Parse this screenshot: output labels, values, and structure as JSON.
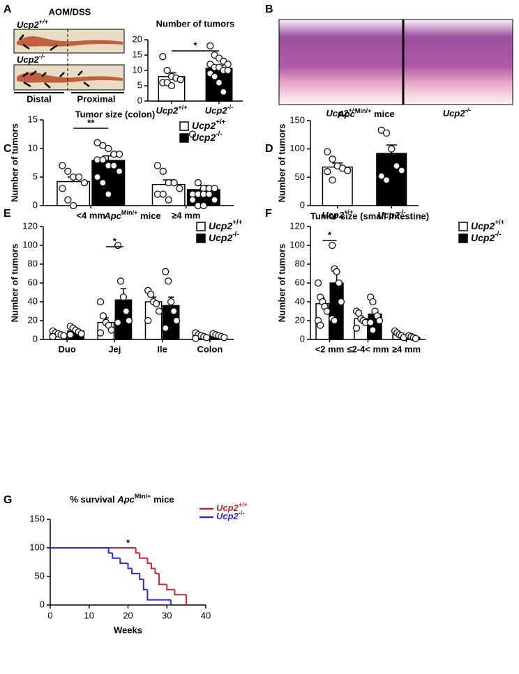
{
  "panel_labels": [
    "A",
    "B",
    "C",
    "D",
    "E",
    "F",
    "G"
  ],
  "figure_a": {
    "title": "AOM/DSS",
    "genotypes": [
      "Ucp2+/+",
      "Ucp2-/-"
    ],
    "regions": [
      "Distal",
      "Proximal"
    ]
  },
  "figure_b": {
    "captions": [
      "Ucp2+/+",
      "Ucp2-/-"
    ]
  },
  "chart_data": [
    {
      "type": "bar",
      "title": "Number of tumors",
      "categories": [
        "Ucp2+/+",
        "Ucp2-/-"
      ],
      "values": [
        8,
        10.7
      ],
      "errors": [
        1.2,
        0.9
      ],
      "colors": [
        "#ffffff",
        "#000000"
      ],
      "points": [
        [
          14.5,
          10,
          8,
          7.5,
          7,
          6,
          6,
          5
        ],
        [
          18,
          15,
          14,
          13,
          12,
          12,
          11,
          11,
          10,
          10,
          9,
          8,
          6,
          3
        ]
      ],
      "ylim": [
        0,
        20
      ],
      "yticks": [
        0,
        5,
        10,
        15,
        20
      ],
      "annotation": "*"
    },
    {
      "type": "bar",
      "title": "Tumor size (colon)",
      "ylabel": "Number of tumors",
      "categories": [
        "<4 mm",
        "≥4 mm"
      ],
      "series": [
        {
          "name": "Ucp2+/+",
          "color": "#ffffff",
          "values": [
            4.2,
            3.7
          ],
          "errors": [
            0.8,
            0.8
          ],
          "points": [
            [
              7,
              6,
              5,
              5,
              4,
              3,
              1,
              0
            ],
            [
              7,
              6,
              4,
              4,
              3,
              2,
              2,
              1
            ]
          ]
        },
        {
          "name": "Ucp2-/-",
          "color": "#000000",
          "values": [
            7.9,
            2.8
          ],
          "errors": [
            0.8,
            0.7
          ],
          "points": [
            [
              11,
              10.5,
              10,
              9,
              9,
              8,
              8,
              7,
              7,
              6,
              5,
              4,
              2
            ],
            [
              12.5,
              4,
              3,
              3,
              3,
              2,
              2,
              2,
              2,
              1,
              1,
              0,
              0
            ]
          ]
        }
      ],
      "ylim": [
        0,
        15
      ],
      "yticks": [
        0,
        5,
        10,
        15
      ],
      "annotation": "**"
    },
    {
      "type": "bar",
      "title": "ApcMin/+ mice",
      "ylabel": "Number of tumors",
      "categories": [
        "Ucp2+/+",
        "Ucp2-/-"
      ],
      "values": [
        68,
        92
      ],
      "errors": [
        7,
        15
      ],
      "colors": [
        "#ffffff",
        "#000000"
      ],
      "points": [
        [
          95,
          82,
          70,
          66,
          62,
          60,
          45
        ],
        [
          133,
          128,
          100,
          70,
          62,
          52,
          45
        ]
      ],
      "ylim": [
        0,
        150
      ],
      "yticks": [
        0,
        50,
        100,
        150
      ]
    },
    {
      "type": "bar",
      "title": "ApcMin/+ mice",
      "ylabel": "Number of tumors",
      "categories": [
        "Duo",
        "Jej",
        "Ile",
        "Colon"
      ],
      "series": [
        {
          "name": "Ucp2+/+",
          "color": "#ffffff",
          "values": [
            6,
            18,
            40,
            4
          ],
          "errors": [
            1.5,
            5,
            5,
            1
          ],
          "points": [
            [
              9,
              7,
              6,
              5,
              4,
              3
            ],
            [
              40,
              25,
              18,
              15,
              10,
              7
            ],
            [
              52,
              48,
              40,
              38,
              30,
              20
            ],
            [
              7,
              5,
              4,
              3,
              2,
              1
            ]
          ]
        },
        {
          "name": "Ucp2-/-",
          "color": "#000000",
          "values": [
            9,
            42,
            36,
            4
          ],
          "errors": [
            2,
            12,
            9,
            1
          ],
          "points": [
            [
              14,
              12,
              10,
              8,
              6,
              5
            ],
            [
              100,
              62,
              45,
              30,
              20,
              18
            ],
            [
              72,
              62,
              40,
              30,
              20,
              12
            ],
            [
              6,
              5,
              4,
              3,
              2
            ]
          ]
        }
      ],
      "ylim": [
        0,
        120
      ],
      "yticks": [
        0,
        20,
        40,
        60,
        80,
        100,
        120
      ],
      "annotation": "*"
    },
    {
      "type": "bar",
      "title": "Tumor size (small intestine)",
      "ylabel": "Number of tumors",
      "categories": [
        "<2 mm",
        "≤2-4< mm",
        "≥4 mm"
      ],
      "series": [
        {
          "name": "Ucp2+/+",
          "color": "#ffffff",
          "values": [
            38,
            22,
            5
          ],
          "errors": [
            6,
            3,
            1
          ],
          "points": [
            [
              60,
              45,
              40,
              35,
              30,
              20,
              15
            ],
            [
              30,
              28,
              22,
              20,
              18,
              12
            ],
            [
              9,
              7,
              5,
              4,
              2
            ]
          ]
        },
        {
          "name": "Ucp2-/-",
          "color": "#000000",
          "values": [
            60,
            27,
            2
          ],
          "errors": [
            11,
            5,
            1
          ],
          "points": [
            [
              100,
              75,
              72,
              60,
              40,
              22,
              20
            ],
            [
              45,
              40,
              30,
              25,
              20,
              18,
              10
            ],
            [
              4,
              3,
              2,
              1
            ]
          ]
        }
      ],
      "ylim": [
        0,
        120
      ],
      "yticks": [
        0,
        20,
        40,
        60,
        80,
        100,
        120
      ],
      "annotation": "*"
    },
    {
      "type": "step",
      "title": "% survival ApcMin/+ mice",
      "xlabel": "Weeks",
      "series": [
        {
          "name": "Ucp2+/+",
          "color": "#c0282d",
          "x": [
            0,
            22,
            23,
            25,
            26,
            27,
            28,
            30,
            32,
            35
          ],
          "values": [
            100,
            91,
            82,
            73,
            64,
            55,
            36,
            27,
            18,
            0
          ]
        },
        {
          "name": "Ucp2-/-",
          "color": "#2b2bd0",
          "x": [
            0,
            15,
            16,
            18,
            20,
            21,
            23,
            24,
            25,
            31
          ],
          "values": [
            100,
            91,
            82,
            73,
            64,
            55,
            45,
            27,
            9,
            0
          ]
        }
      ],
      "xlim": [
        0,
        40
      ],
      "xticks": [
        0,
        10,
        20,
        30,
        40
      ],
      "ylim": [
        0,
        150
      ],
      "yticks": [
        0,
        50,
        100,
        150
      ],
      "annotation": "*"
    }
  ]
}
